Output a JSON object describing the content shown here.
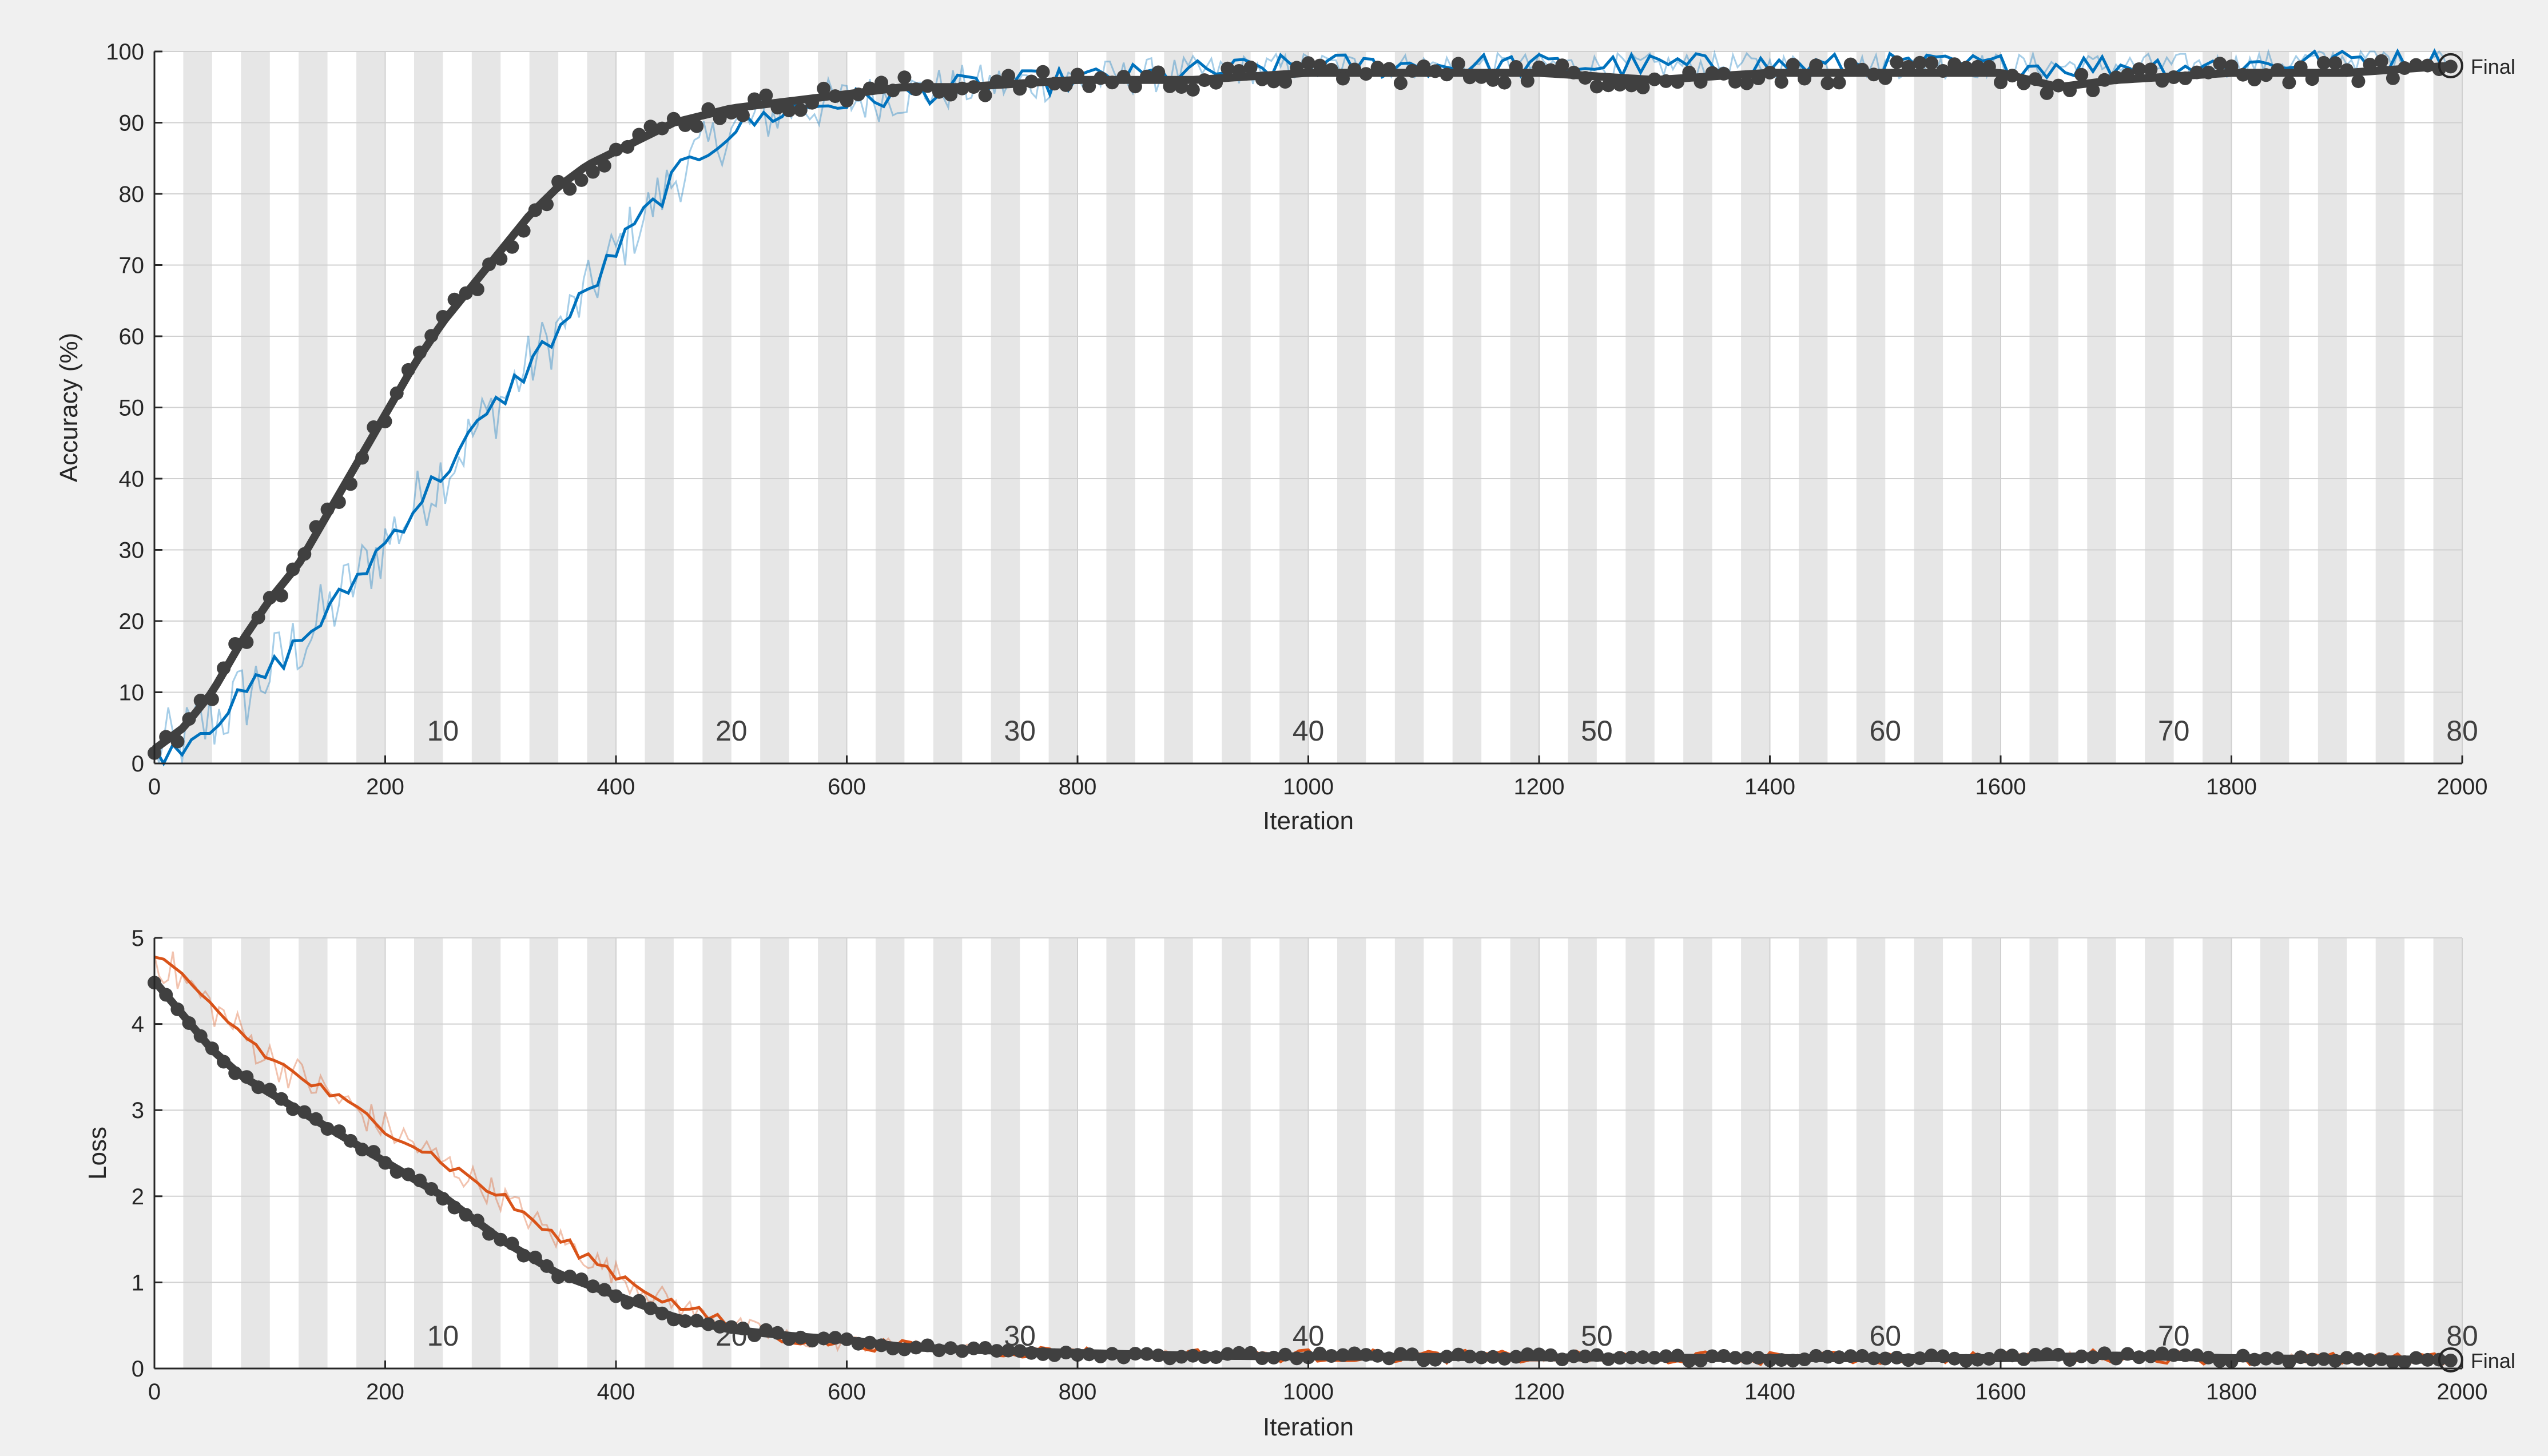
{
  "chart_data": [
    {
      "type": "line",
      "xlabel": "Iteration",
      "ylabel": "Accuracy (%)",
      "xlim": [
        0,
        2000
      ],
      "ylim": [
        0,
        100
      ],
      "xticks": [
        "0",
        "200",
        "400",
        "600",
        "800",
        "1000",
        "1200",
        "1400",
        "1600",
        "1800",
        "2000"
      ],
      "yticks": [
        "0",
        "10",
        "20",
        "30",
        "40",
        "50",
        "60",
        "70",
        "80",
        "90",
        "100"
      ],
      "epoch_labels": [
        "10",
        "20",
        "30",
        "40",
        "50",
        "60",
        "70",
        "80"
      ],
      "epochs": 80,
      "iterations_per_epoch": 25,
      "grid": true,
      "final_label": "Final",
      "series": [
        {
          "color": "#0072bd",
          "x": [
            0,
            25,
            50,
            75,
            100,
            125,
            150,
            175,
            200,
            225,
            250,
            275,
            300,
            325,
            350,
            375,
            400,
            425,
            450,
            475,
            500,
            550,
            600,
            650,
            700,
            800,
            900,
            1000,
            1100,
            1200,
            1300,
            1400,
            1500,
            1600,
            1700,
            1800,
            1900,
            1990
          ],
          "values": [
            1,
            3,
            6,
            9,
            13,
            17,
            21,
            26,
            31,
            36,
            41,
            46,
            51,
            56,
            61,
            66,
            72,
            77,
            82,
            86,
            89,
            92,
            93,
            94,
            95,
            96,
            97,
            98,
            98,
            98,
            98,
            98,
            98,
            98,
            98,
            98,
            99,
            99
          ]
        },
        {
          "color": "#404040",
          "x": [
            0,
            25,
            50,
            75,
            100,
            125,
            150,
            175,
            200,
            225,
            250,
            275,
            300,
            325,
            350,
            375,
            400,
            425,
            450,
            475,
            500,
            550,
            600,
            650,
            700,
            800,
            900,
            1000,
            1100,
            1200,
            1300,
            1400,
            1500,
            1600,
            1650,
            1700,
            1800,
            1900,
            1990
          ],
          "values": [
            2,
            5,
            10,
            17,
            23,
            28,
            35,
            42,
            49,
            56,
            62,
            67,
            72,
            77,
            81,
            84,
            86,
            88,
            90,
            91,
            92,
            93,
            94,
            95,
            95,
            96,
            96,
            97,
            97,
            97,
            96,
            97,
            97,
            97,
            95,
            96,
            97,
            97,
            98
          ]
        }
      ]
    },
    {
      "type": "line",
      "xlabel": "Iteration",
      "ylabel": "Loss",
      "xlim": [
        0,
        2000
      ],
      "ylim": [
        0,
        5
      ],
      "xticks": [
        "0",
        "200",
        "400",
        "600",
        "800",
        "1000",
        "1200",
        "1400",
        "1600",
        "1800",
        "2000"
      ],
      "yticks": [
        "0",
        "1",
        "2",
        "3",
        "4",
        "5"
      ],
      "epoch_labels": [
        "10",
        "20",
        "30",
        "40",
        "50",
        "60",
        "70",
        "80"
      ],
      "epochs": 80,
      "iterations_per_epoch": 25,
      "grid": true,
      "final_label": "Final",
      "series": [
        {
          "color": "#d95319",
          "x": [
            0,
            25,
            50,
            75,
            100,
            125,
            150,
            175,
            200,
            250,
            300,
            350,
            400,
            450,
            500,
            550,
            600,
            650,
            700,
            800,
            900,
            1000,
            1200,
            1400,
            1600,
            1700,
            1800,
            1990
          ],
          "values": [
            4.8,
            4.5,
            4.2,
            3.9,
            3.6,
            3.4,
            3.2,
            3.0,
            2.8,
            2.4,
            2.0,
            1.5,
            1.1,
            0.75,
            0.5,
            0.35,
            0.3,
            0.25,
            0.22,
            0.18,
            0.16,
            0.15,
            0.13,
            0.12,
            0.13,
            0.15,
            0.12,
            0.1
          ]
        },
        {
          "color": "#404040",
          "x": [
            0,
            25,
            50,
            75,
            100,
            125,
            150,
            175,
            200,
            250,
            300,
            350,
            400,
            450,
            500,
            550,
            600,
            650,
            700,
            800,
            900,
            1000,
            1200,
            1400,
            1600,
            1700,
            1800,
            1990
          ],
          "values": [
            4.5,
            4.1,
            3.7,
            3.4,
            3.2,
            3.0,
            2.8,
            2.6,
            2.4,
            2.0,
            1.5,
            1.1,
            0.85,
            0.6,
            0.45,
            0.38,
            0.33,
            0.25,
            0.22,
            0.18,
            0.15,
            0.14,
            0.13,
            0.12,
            0.12,
            0.15,
            0.12,
            0.1
          ]
        }
      ]
    }
  ]
}
